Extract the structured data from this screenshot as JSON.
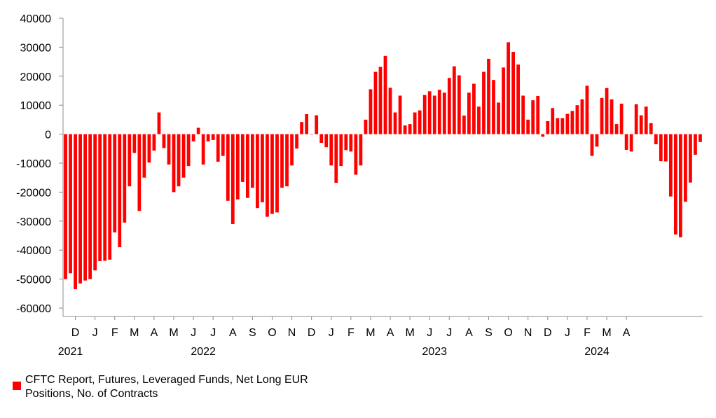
{
  "chart_data": {
    "type": "bar",
    "title": "",
    "xlabel": "",
    "ylabel": "",
    "ylim": [
      -60000,
      40000
    ],
    "yticks": [
      40000,
      30000,
      20000,
      10000,
      0,
      -10000,
      -20000,
      -30000,
      -40000,
      -50000,
      -60000
    ],
    "ytick_labels": [
      "40000",
      "30000",
      "20000",
      "10000",
      "0",
      "-10000",
      "-20000",
      "-30000",
      "-40000",
      "-50000",
      "-60000"
    ],
    "month_labels": [
      {
        "label": "D",
        "bar": 2
      },
      {
        "label": "J",
        "bar": 6
      },
      {
        "label": "F",
        "bar": 10
      },
      {
        "label": "M",
        "bar": 14
      },
      {
        "label": "A",
        "bar": 18
      },
      {
        "label": "M",
        "bar": 22
      },
      {
        "label": "J",
        "bar": 26
      },
      {
        "label": "J",
        "bar": 30
      },
      {
        "label": "A",
        "bar": 34
      },
      {
        "label": "S",
        "bar": 38
      },
      {
        "label": "O",
        "bar": 42
      },
      {
        "label": "N",
        "bar": 46
      },
      {
        "label": "D",
        "bar": 50
      },
      {
        "label": "J",
        "bar": 54
      },
      {
        "label": "F",
        "bar": 58
      },
      {
        "label": "M",
        "bar": 62
      },
      {
        "label": "A",
        "bar": 66
      },
      {
        "label": "M",
        "bar": 70
      },
      {
        "label": "J",
        "bar": 74
      },
      {
        "label": "J",
        "bar": 78
      },
      {
        "label": "A",
        "bar": 82
      },
      {
        "label": "S",
        "bar": 86
      },
      {
        "label": "O",
        "bar": 90
      },
      {
        "label": "N",
        "bar": 94
      },
      {
        "label": "D",
        "bar": 98
      },
      {
        "label": "J",
        "bar": 102
      },
      {
        "label": "F",
        "bar": 106
      },
      {
        "label": "M",
        "bar": 110
      },
      {
        "label": "A",
        "bar": 114
      }
    ],
    "year_labels": [
      {
        "label": "2021",
        "bar": 1
      },
      {
        "label": "2022",
        "bar": 28
      },
      {
        "label": "2023",
        "bar": 75
      },
      {
        "label": "2024",
        "bar": 108
      }
    ],
    "series": [
      {
        "name": "CFTC Report, Futures, Leveraged Funds, Net Long EUR Positions, No. of Contracts",
        "color": "#ff0000",
        "values": [
          -50000,
          -48000,
          -53500,
          -51500,
          -50500,
          -50000,
          -47000,
          -43800,
          -43700,
          -43300,
          -33900,
          -39000,
          -30500,
          -18000,
          -6500,
          -26500,
          -15000,
          -9800,
          -5700,
          7500,
          -4800,
          -10500,
          -20000,
          -18000,
          -15000,
          -11000,
          -2500,
          2200,
          -10500,
          -2500,
          -2000,
          -9500,
          -7500,
          -23000,
          -31000,
          -22500,
          -16500,
          -22000,
          -18500,
          -25500,
          -23500,
          -28500,
          -27500,
          -27000,
          -18500,
          -18000,
          -10800,
          -5000,
          4200,
          6900,
          0,
          6500,
          -3000,
          -4500,
          -10800,
          -16800,
          -11000,
          -5500,
          -6000,
          -14000,
          -10800,
          5000,
          15500,
          21500,
          23200,
          27000,
          16000,
          7500,
          13300,
          3000,
          3500,
          7500,
          8200,
          13500,
          14800,
          13300,
          15300,
          14300,
          19400,
          23400,
          20300,
          6400,
          14300,
          17400,
          9500,
          21500,
          26000,
          18700,
          10900,
          23000,
          31700,
          28400,
          24000,
          13300,
          5000,
          11700,
          13200,
          -900,
          4500,
          9000,
          5500,
          5500,
          7000,
          8000,
          10000,
          12000,
          16700,
          -7500,
          -4300,
          12500,
          15900,
          12000,
          3500,
          10500,
          -5400,
          -6000,
          10300,
          6500,
          9500,
          3800,
          -3500,
          -9300,
          -9400,
          -21500,
          -34600,
          -35600,
          -23300,
          -16700,
          -7100,
          -2700
        ]
      }
    ],
    "legend": {
      "position": "bottom-left",
      "text_line1": "CFTC Report, Futures, Leveraged Funds, Net Long EUR",
      "text_line2": "Positions, No. of Contracts"
    }
  }
}
